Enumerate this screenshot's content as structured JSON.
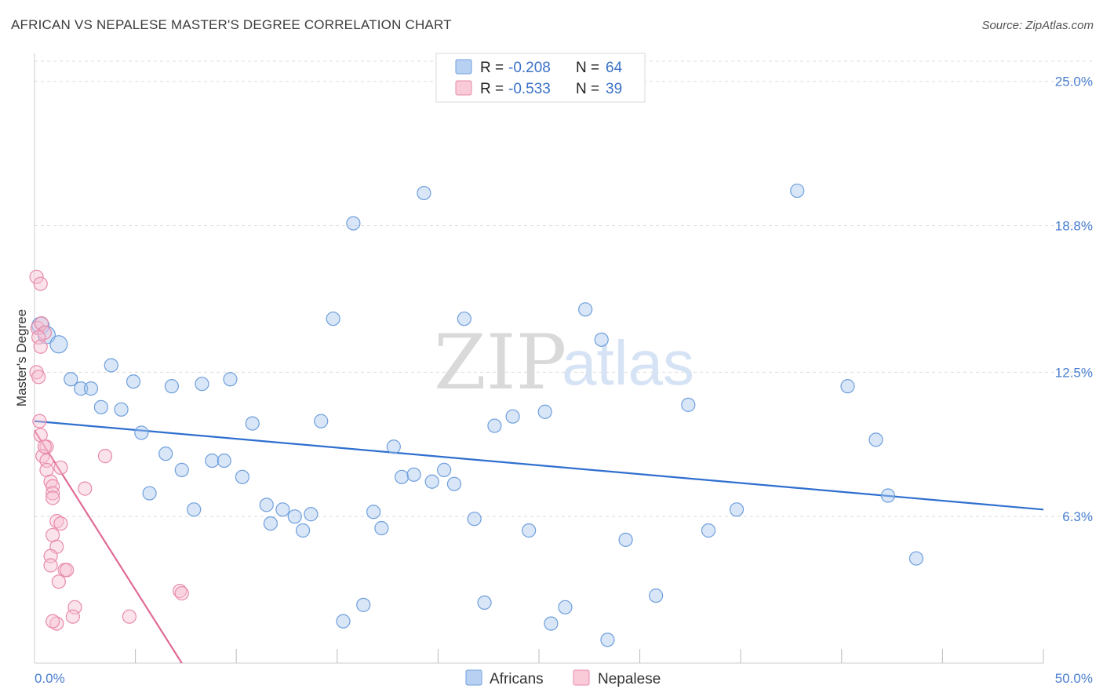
{
  "title": "AFRICAN VS NEPALESE MASTER'S DEGREE CORRELATION CHART",
  "source": "Source: ZipAtlas.com",
  "watermark": {
    "part1": "ZIP",
    "part2": "atlas"
  },
  "colors": {
    "african_fill": "#a9c8f0",
    "african_stroke": "#6f9fdc",
    "african_line": "#2f6fcf",
    "nepalese_fill": "#f7c0d2",
    "nepalese_stroke": "#e88aab",
    "nepalese_line": "#e06a97",
    "grid": "#dddddd",
    "tick_label": "#4a7fd0"
  },
  "legend": {
    "rows": [
      {
        "r_label": "R = ",
        "r_value": "-0.208",
        "n_label": "N = ",
        "n_value": "64"
      },
      {
        "r_label": "R = ",
        "r_value": "-0.533",
        "n_label": "N = ",
        "n_value": "39"
      }
    ]
  },
  "bottom_legend": [
    "Africans",
    "Nepalese"
  ],
  "chart_data": {
    "type": "scatter",
    "title": "AFRICAN VS NEPALESE MASTER'S DEGREE CORRELATION CHART",
    "xlabel": "",
    "ylabel": "Master's Degree",
    "xlim": [
      0,
      50
    ],
    "ylim": [
      0,
      25.8
    ],
    "x_tick_labels": [
      "0.0%",
      "50.0%"
    ],
    "y_ticks": [
      6.3,
      12.5,
      18.8,
      25.0
    ],
    "y_tick_labels": [
      "6.3%",
      "12.5%",
      "18.8%",
      "25.0%"
    ],
    "grid": true,
    "legend_position": "top-center",
    "series": [
      {
        "name": "Africans",
        "r": -0.208,
        "n": 64,
        "trend": {
          "x": [
            0,
            50
          ],
          "y": [
            10.4,
            6.6
          ]
        },
        "points": [
          [
            0.3,
            14.5
          ],
          [
            0.6,
            14.1
          ],
          [
            1.2,
            13.7
          ],
          [
            1.8,
            12.2
          ],
          [
            2.3,
            11.8
          ],
          [
            2.8,
            11.8
          ],
          [
            3.3,
            11.0
          ],
          [
            3.8,
            12.8
          ],
          [
            4.3,
            10.9
          ],
          [
            4.9,
            12.1
          ],
          [
            5.3,
            9.9
          ],
          [
            5.7,
            7.3
          ],
          [
            6.5,
            9.0
          ],
          [
            6.8,
            11.9
          ],
          [
            7.3,
            8.3
          ],
          [
            7.9,
            6.6
          ],
          [
            8.3,
            12.0
          ],
          [
            8.8,
            8.7
          ],
          [
            9.4,
            8.7
          ],
          [
            9.7,
            12.2
          ],
          [
            10.3,
            8.0
          ],
          [
            10.8,
            10.3
          ],
          [
            11.5,
            6.8
          ],
          [
            11.7,
            6.0
          ],
          [
            12.3,
            6.6
          ],
          [
            12.9,
            6.3
          ],
          [
            13.3,
            5.7
          ],
          [
            13.7,
            6.4
          ],
          [
            14.2,
            10.4
          ],
          [
            14.8,
            14.8
          ],
          [
            15.3,
            1.8
          ],
          [
            15.8,
            18.9
          ],
          [
            16.3,
            2.5
          ],
          [
            16.8,
            6.5
          ],
          [
            17.2,
            5.8
          ],
          [
            17.8,
            9.3
          ],
          [
            18.2,
            8.0
          ],
          [
            18.8,
            8.1
          ],
          [
            19.3,
            20.2
          ],
          [
            19.7,
            7.8
          ],
          [
            20.3,
            8.3
          ],
          [
            20.8,
            7.7
          ],
          [
            21.3,
            14.8
          ],
          [
            21.8,
            6.2
          ],
          [
            22.3,
            2.6
          ],
          [
            22.8,
            10.2
          ],
          [
            23.7,
            10.6
          ],
          [
            24.5,
            5.7
          ],
          [
            25.3,
            10.8
          ],
          [
            25.6,
            1.7
          ],
          [
            26.3,
            2.4
          ],
          [
            27.3,
            15.2
          ],
          [
            28.1,
            13.9
          ],
          [
            28.4,
            1.0
          ],
          [
            29.3,
            5.3
          ],
          [
            30.8,
            2.9
          ],
          [
            32.4,
            11.1
          ],
          [
            33.4,
            5.7
          ],
          [
            34.8,
            6.6
          ],
          [
            37.8,
            20.3
          ],
          [
            40.3,
            11.9
          ],
          [
            41.7,
            9.6
          ],
          [
            42.3,
            7.2
          ],
          [
            43.7,
            4.5
          ]
        ]
      },
      {
        "name": "Nepalese",
        "r": -0.533,
        "n": 39,
        "trend": {
          "x": [
            0,
            7.3
          ],
          "y": [
            10.0,
            0.0
          ]
        },
        "points": [
          [
            0.1,
            16.6
          ],
          [
            0.3,
            16.3
          ],
          [
            0.15,
            14.4
          ],
          [
            0.35,
            14.6
          ],
          [
            0.5,
            14.2
          ],
          [
            0.2,
            14.0
          ],
          [
            0.3,
            13.6
          ],
          [
            0.1,
            12.5
          ],
          [
            0.2,
            12.3
          ],
          [
            0.25,
            10.4
          ],
          [
            0.3,
            9.8
          ],
          [
            0.6,
            9.3
          ],
          [
            0.4,
            8.9
          ],
          [
            0.6,
            8.7
          ],
          [
            1.3,
            8.4
          ],
          [
            0.6,
            8.3
          ],
          [
            0.8,
            7.8
          ],
          [
            0.9,
            7.6
          ],
          [
            3.5,
            8.9
          ],
          [
            2.5,
            7.5
          ],
          [
            0.9,
            7.3
          ],
          [
            0.9,
            7.1
          ],
          [
            1.1,
            6.1
          ],
          [
            1.3,
            6.0
          ],
          [
            0.9,
            5.5
          ],
          [
            1.1,
            5.0
          ],
          [
            0.8,
            4.6
          ],
          [
            0.8,
            4.2
          ],
          [
            1.5,
            4.0
          ],
          [
            1.6,
            4.0
          ],
          [
            1.2,
            3.5
          ],
          [
            2.0,
            2.4
          ],
          [
            7.2,
            3.1
          ],
          [
            7.3,
            3.0
          ],
          [
            4.7,
            2.0
          ],
          [
            1.9,
            2.0
          ],
          [
            1.1,
            1.7
          ],
          [
            0.9,
            1.8
          ],
          [
            0.5,
            9.3
          ]
        ]
      }
    ]
  }
}
